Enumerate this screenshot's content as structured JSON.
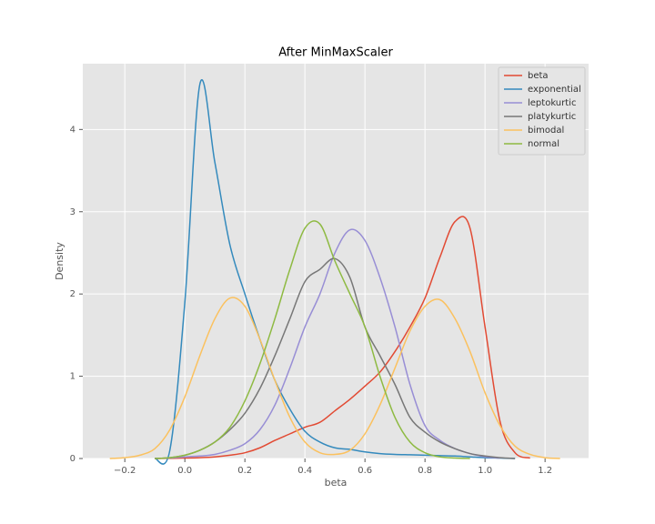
{
  "chart_data": {
    "type": "line",
    "title": "After MinMaxScaler",
    "xlabel": "beta",
    "ylabel": "Density",
    "x": [
      -0.25,
      -0.2,
      -0.15,
      -0.1,
      -0.05,
      0,
      0.05,
      0.1,
      0.15,
      0.2,
      0.25,
      0.3,
      0.35,
      0.4,
      0.45,
      0.5,
      0.55,
      0.6,
      0.65,
      0.7,
      0.75,
      0.8,
      0.85,
      0.9,
      0.95,
      1.0,
      1.05,
      1.1,
      1.15,
      1.2,
      1.25
    ],
    "series": [
      {
        "name": "beta",
        "color": "#E24A33",
        "values": [
          null,
          null,
          null,
          0,
          0.002,
          0.005,
          0.01,
          0.02,
          0.04,
          0.07,
          0.13,
          0.22,
          0.3,
          0.38,
          0.44,
          0.58,
          0.72,
          0.88,
          1.05,
          1.3,
          1.6,
          1.95,
          2.45,
          2.88,
          2.8,
          1.6,
          0.45,
          0.07,
          0.005,
          null,
          null
        ]
      },
      {
        "name": "exponential",
        "color": "#348ABD",
        "values": [
          null,
          null,
          null,
          0,
          0.1,
          1.9,
          4.55,
          3.6,
          2.6,
          2.0,
          1.45,
          0.95,
          0.6,
          0.33,
          0.2,
          0.13,
          0.11,
          0.08,
          0.06,
          0.05,
          0.045,
          0.04,
          0.035,
          0.03,
          0.02,
          0.01,
          0.005,
          0,
          null,
          null,
          null
        ]
      },
      {
        "name": "leptokurtic",
        "color": "#988ED5",
        "values": [
          null,
          null,
          null,
          0,
          0.005,
          0.02,
          0.03,
          0.05,
          0.1,
          0.18,
          0.35,
          0.65,
          1.1,
          1.6,
          2.0,
          2.5,
          2.78,
          2.65,
          2.2,
          1.6,
          0.9,
          0.4,
          0.22,
          0.12,
          0.06,
          0.02,
          0.005,
          null,
          null,
          null,
          null
        ]
      },
      {
        "name": "platykurtic",
        "color": "#777777",
        "values": [
          null,
          null,
          null,
          0,
          0.01,
          0.04,
          0.1,
          0.2,
          0.35,
          0.55,
          0.85,
          1.25,
          1.7,
          2.15,
          2.3,
          2.43,
          2.2,
          1.6,
          1.25,
          0.9,
          0.5,
          0.32,
          0.2,
          0.12,
          0.06,
          0.03,
          0.01,
          0,
          null,
          null,
          null
        ]
      },
      {
        "name": "bimodal",
        "color": "#FBC15E",
        "values": [
          0,
          0.01,
          0.04,
          0.12,
          0.35,
          0.75,
          1.25,
          1.7,
          1.95,
          1.85,
          1.45,
          0.95,
          0.5,
          0.2,
          0.07,
          0.05,
          0.1,
          0.3,
          0.65,
          1.1,
          1.55,
          1.85,
          1.93,
          1.7,
          1.3,
          0.8,
          0.4,
          0.15,
          0.05,
          0.01,
          0
        ]
      },
      {
        "name": "normal",
        "color": "#8EBA42",
        "values": [
          null,
          null,
          null,
          0,
          0.01,
          0.04,
          0.1,
          0.2,
          0.38,
          0.7,
          1.15,
          1.7,
          2.3,
          2.8,
          2.85,
          2.4,
          2.0,
          1.6,
          1.0,
          0.5,
          0.2,
          0.07,
          0.02,
          0.005,
          0,
          null,
          null,
          null,
          null,
          null,
          null
        ]
      }
    ],
    "xlim": [
      -0.34,
      1.345
    ],
    "ylim": [
      0,
      4.8
    ],
    "xticks": [
      {
        "value": -0.2,
        "label": "−0.2"
      },
      {
        "value": 0,
        "label": "0.0"
      },
      0.2,
      0.4,
      0.6,
      0.8,
      {
        "value": 1,
        "label": "1.0"
      },
      1.2
    ],
    "yticks": [
      0,
      1,
      2,
      3,
      4
    ],
    "grid": true,
    "legend": "upper right"
  }
}
